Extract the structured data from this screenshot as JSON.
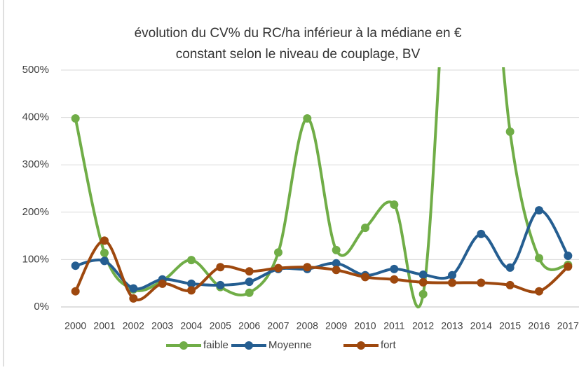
{
  "chart_data": {
    "type": "line",
    "title": [
      "évolution du CV% du RC/ha inférieur à la médiane en €",
      "constant selon le niveau de couplage, BV"
    ],
    "categories": [
      "2000",
      "2001",
      "2002",
      "2003",
      "2004",
      "2005",
      "2006",
      "2007",
      "2008",
      "2009",
      "2010",
      "2011",
      "2012",
      "2013",
      "2014",
      "2015",
      "2016",
      "2017"
    ],
    "series": [
      {
        "name": "faible",
        "color": "#70ad47",
        "values": [
          398,
          114,
          37,
          55,
          99,
          42,
          30,
          115,
          398,
          120,
          167,
          216,
          27,
          900,
          1000,
          370,
          103,
          89
        ]
      },
      {
        "name": "Moyenne",
        "color": "#255e91",
        "values": [
          87,
          97,
          39,
          58,
          49,
          46,
          53,
          80,
          80,
          92,
          67,
          80,
          68,
          67,
          154,
          83,
          204,
          108
        ]
      },
      {
        "name": "fort",
        "color": "#9e480e",
        "values": [
          33,
          140,
          18,
          49,
          35,
          84,
          75,
          82,
          84,
          78,
          63,
          58,
          52,
          51,
          51,
          46,
          33,
          85
        ]
      }
    ],
    "ylim": [
      0,
      500
    ],
    "yticks": [
      {
        "value": 0,
        "label": "0%"
      },
      {
        "value": 100,
        "label": "100%"
      },
      {
        "value": 200,
        "label": "200%"
      },
      {
        "value": 300,
        "label": "300%"
      },
      {
        "value": 400,
        "label": "400%"
      },
      {
        "value": 500,
        "label": "500%"
      }
    ],
    "grid": true,
    "legend": "bottom",
    "smooth": true
  }
}
